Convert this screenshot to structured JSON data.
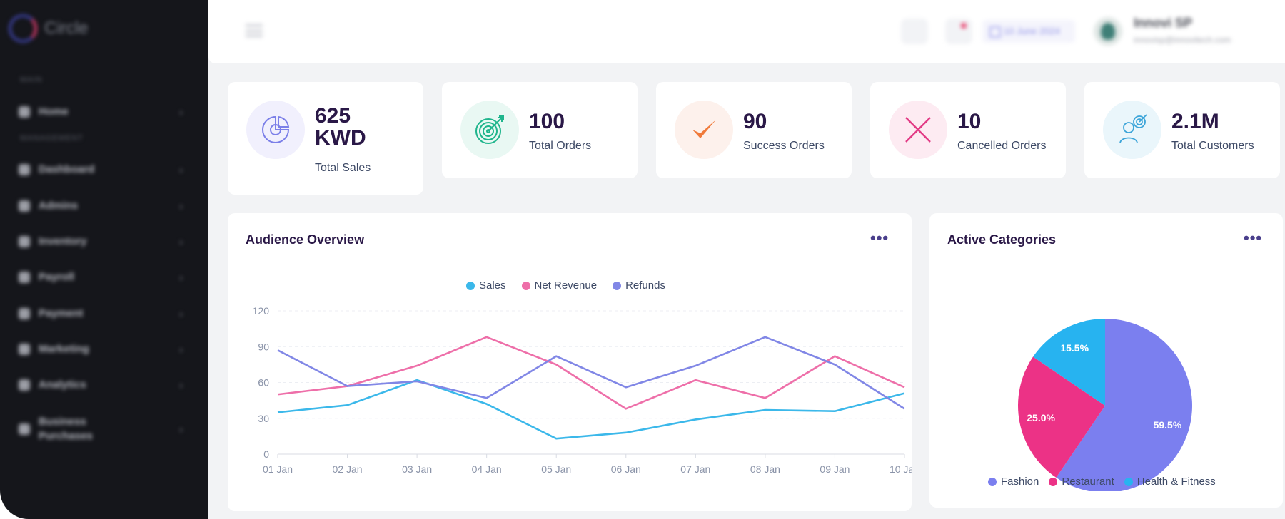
{
  "app": {
    "brand": "Circle"
  },
  "sidebar": {
    "heading_main": "MAIN",
    "heading_management": "MANAGEMENT",
    "items": [
      {
        "label": "Home",
        "icon": "home-icon"
      },
      {
        "label": "Dashboard",
        "icon": "dashboard-icon"
      },
      {
        "label": "Admins",
        "icon": "admins-icon"
      },
      {
        "label": "Inventory",
        "icon": "inventory-icon"
      },
      {
        "label": "Payroll",
        "icon": "payroll-icon"
      },
      {
        "label": "Payment",
        "icon": "payment-icon"
      },
      {
        "label": "Marketing",
        "icon": "marketing-icon"
      },
      {
        "label": "Analytics",
        "icon": "analytics-icon"
      },
      {
        "label": "Business Purchases",
        "icon": "business-purchases-icon"
      }
    ]
  },
  "header": {
    "date": "10 June 2024",
    "user_name": "Innovi SP",
    "user_email": "innovisp@innovitech.com"
  },
  "stats": [
    {
      "value": "625 KWD",
      "value_line1": "625",
      "value_line2": "KWD",
      "label": "Total Sales",
      "icon": "pie-chart-icon",
      "bg": "#f1f0fd",
      "color": "#7b7fe8"
    },
    {
      "value": "100",
      "label": "Total Orders",
      "icon": "target-icon",
      "bg": "#e9f8f3",
      "color": "#1fb58c"
    },
    {
      "value": "90",
      "label": "Success Orders",
      "icon": "checkmark-icon",
      "bg": "#fdf1ec",
      "color": "#f07a3a"
    },
    {
      "value": "10",
      "label": "Cancelled Orders",
      "icon": "cross-icon",
      "bg": "#fdebf2",
      "color": "#e23c86"
    },
    {
      "value": "2.1M",
      "label": "Total Customers",
      "icon": "customer-target-icon",
      "bg": "#eaf6fb",
      "color": "#3da5d9"
    }
  ],
  "audience": {
    "title": "Audience Overview",
    "menu": "•••"
  },
  "categories": {
    "title": "Active Categories",
    "menu": "•••"
  },
  "colors": {
    "sales": "#3bb8ea",
    "net_revenue": "#ee6fa9",
    "refunds": "#8187e6",
    "fashion": "#7b7fef",
    "restaurant": "#ec3286",
    "health": "#27b3f0"
  },
  "chart_data": [
    {
      "type": "line",
      "title": "Audience Overview",
      "categories": [
        "01 Jan",
        "02 Jan",
        "03 Jan",
        "04 Jan",
        "05 Jan",
        "06 Jan",
        "07 Jan",
        "08 Jan",
        "09 Jan",
        "10 Jan"
      ],
      "ylim": [
        0,
        120
      ],
      "yticks": [
        "0",
        "30",
        "60",
        "90",
        "120"
      ],
      "grid": true,
      "legend": "top-center",
      "series": [
        {
          "name": "Sales",
          "color": "#3bb8ea",
          "values": [
            35,
            41,
            62,
            42,
            13,
            18,
            29,
            37,
            36,
            51
          ]
        },
        {
          "name": "Net Revenue",
          "color": "#ee6fa9",
          "values": [
            50,
            57,
            74,
            98,
            75,
            38,
            62,
            47,
            82,
            56
          ]
        },
        {
          "name": "Refunds",
          "color": "#8187e6",
          "values": [
            87,
            57,
            61,
            47,
            82,
            56,
            74,
            98,
            75,
            38
          ]
        }
      ]
    },
    {
      "type": "pie",
      "title": "Active Categories",
      "legend": "bottom",
      "slices": [
        {
          "name": "Fashion",
          "value": 59.5,
          "label": "59.5%",
          "color": "#7b7fef"
        },
        {
          "name": "Restaurant",
          "value": 25.0,
          "label": "25.0%",
          "color": "#ec3286"
        },
        {
          "name": "Health & Fitness",
          "value": 15.5,
          "label": "15.5%",
          "color": "#27b3f0"
        }
      ]
    }
  ]
}
